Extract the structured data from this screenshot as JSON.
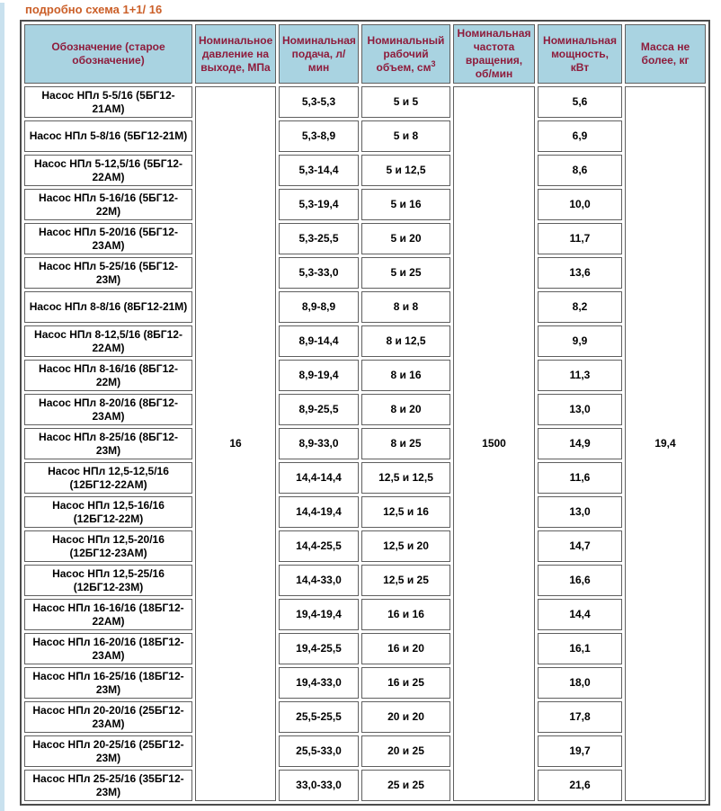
{
  "page": {
    "title": "подробно схема 1+1/ 16",
    "title_color": "#cb5f28",
    "header_bg_color": "#a9d3e1",
    "header_text_color": "#8e1c3c",
    "left_strip_color": "#c9e1ee"
  },
  "table": {
    "headers": [
      {
        "text": "Обозначение (старое обозначение)"
      },
      {
        "text": "Номинальное давление на выходе, МПа"
      },
      {
        "text": "Номинальная подача, л/ мин"
      },
      {
        "text": "Номинальный рабочий объем, см",
        "sup": "3"
      },
      {
        "text": "Номинальная частота вращения, об/мин"
      },
      {
        "text": "Номинальная мощность, кВт"
      },
      {
        "text": "Масса не более, кг"
      }
    ],
    "merged": {
      "pressure_mpa": "16",
      "speed_rpm": "1500",
      "mass_kg": "19,4"
    },
    "rows": [
      {
        "name": "Насос НПл 5-5/16 (5БГ12-21АМ)",
        "flow": "5,3-5,3",
        "volume": "5 и 5",
        "power": "5,6"
      },
      {
        "name": "Насос НПл 5-8/16 (5БГ12-21М)",
        "flow": "5,3-8,9",
        "volume": "5 и 8",
        "power": "6,9"
      },
      {
        "name": "Насос НПл 5-12,5/16 (5БГ12-22АМ)",
        "flow": "5,3-14,4",
        "volume": "5 и 12,5",
        "power": "8,6"
      },
      {
        "name": "Насос НПл 5-16/16 (5БГ12-22М)",
        "flow": "5,3-19,4",
        "volume": "5 и 16",
        "power": "10,0"
      },
      {
        "name": "Насос НПл 5-20/16 (5БГ12-23АМ)",
        "flow": "5,3-25,5",
        "volume": "5 и 20",
        "power": "11,7"
      },
      {
        "name": "Насос НПл 5-25/16 (5БГ12-23М)",
        "flow": "5,3-33,0",
        "volume": "5 и 25",
        "power": "13,6"
      },
      {
        "name": "Насос НПл 8-8/16 (8БГ12-21М)",
        "flow": "8,9-8,9",
        "volume": "8 и 8",
        "power": "8,2"
      },
      {
        "name": "Насос НПл 8-12,5/16 (8БГ12-22АМ)",
        "flow": "8,9-14,4",
        "volume": "8 и 12,5",
        "power": "9,9"
      },
      {
        "name": "Насос НПл 8-16/16 (8БГ12-22М)",
        "flow": "8,9-19,4",
        "volume": "8 и 16",
        "power": "11,3"
      },
      {
        "name": "Насос НПл 8-20/16 (8БГ12-23АМ)",
        "flow": "8,9-25,5",
        "volume": "8 и 20",
        "power": "13,0"
      },
      {
        "name": "Насос НПл 8-25/16 (8БГ12-23М)",
        "flow": "8,9-33,0",
        "volume": "8 и 25",
        "power": "14,9"
      },
      {
        "name": "Насос НПл 12,5-12,5/16 (12БГ12-22АМ)",
        "flow": "14,4-14,4",
        "volume": "12,5 и 12,5",
        "power": "11,6"
      },
      {
        "name": "Насос НПл 12,5-16/16 (12БГ12-22М)",
        "flow": "14,4-19,4",
        "volume": "12,5 и 16",
        "power": "13,0"
      },
      {
        "name": "Насос НПл 12,5-20/16 (12БГ12-23АМ)",
        "flow": "14,4-25,5",
        "volume": "12,5 и 20",
        "power": "14,7"
      },
      {
        "name": "Насос НПл 12,5-25/16 (12БГ12-23М)",
        "flow": "14,4-33,0",
        "volume": "12,5 и 25",
        "power": "16,6"
      },
      {
        "name": "Насос НПл 16-16/16 (18БГ12-22АМ)",
        "flow": "19,4-19,4",
        "volume": "16 и 16",
        "power": "14,4"
      },
      {
        "name": "Насос НПл 16-20/16 (18БГ12-23АМ)",
        "flow": "19,4-25,5",
        "volume": "16 и 20",
        "power": "16,1"
      },
      {
        "name": "Насос НПл 16-25/16 (18БГ12-23М)",
        "flow": "19,4-33,0",
        "volume": "16 и 25",
        "power": "18,0"
      },
      {
        "name": "Насос НПл 20-20/16 (25БГ12-23АМ)",
        "flow": "25,5-25,5",
        "volume": "20 и 20",
        "power": "17,8"
      },
      {
        "name": "Насос НПл 20-25/16 (25БГ12-23М)",
        "flow": "25,5-33,0",
        "volume": "20 и 25",
        "power": "19,7"
      },
      {
        "name": "Насос НПл 25-25/16 (35БГ12-23М)",
        "flow": "33,0-33,0",
        "volume": "25 и 25",
        "power": "21,6"
      }
    ]
  }
}
